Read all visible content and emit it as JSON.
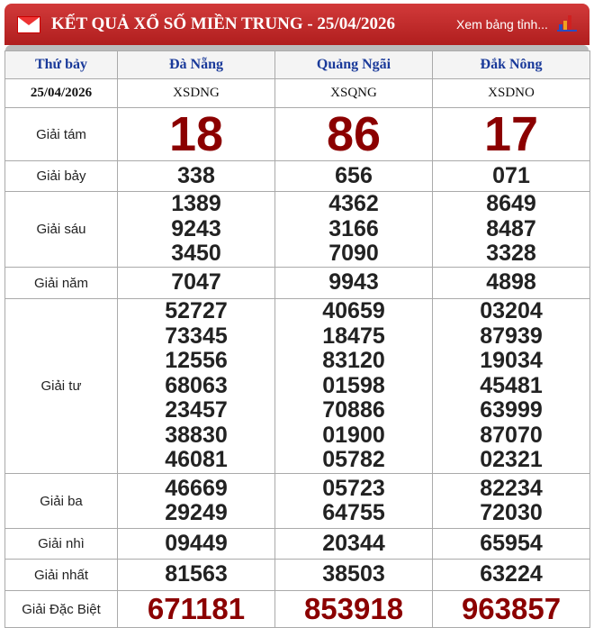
{
  "header": {
    "title": "KẾT QUẢ XỔ SỐ MIỀN TRUNG - 25/04/2026",
    "more_link": "Xem bảng tỉnh...",
    "accent": "#b01e1e"
  },
  "columns": {
    "day": "Thứ bảy",
    "provinces": [
      "Đà Nẵng",
      "Quảng Ngãi",
      "Đắk Nông"
    ]
  },
  "date_row": {
    "date": "25/04/2026",
    "codes": [
      "XSDNG",
      "XSQNG",
      "XSDNO"
    ]
  },
  "prizes": [
    {
      "label": "Giải tám",
      "style": "big",
      "values": [
        [
          "18"
        ],
        [
          "86"
        ],
        [
          "17"
        ]
      ]
    },
    {
      "label": "Giải bảy",
      "style": "num",
      "values": [
        [
          "338"
        ],
        [
          "656"
        ],
        [
          "071"
        ]
      ]
    },
    {
      "label": "Giải sáu",
      "style": "num",
      "values": [
        [
          "1389",
          "9243",
          "3450"
        ],
        [
          "4362",
          "3166",
          "7090"
        ],
        [
          "8649",
          "8487",
          "3328"
        ]
      ]
    },
    {
      "label": "Giải năm",
      "style": "num",
      "values": [
        [
          "7047"
        ],
        [
          "9943"
        ],
        [
          "4898"
        ]
      ]
    },
    {
      "label": "Giải tư",
      "style": "num",
      "values": [
        [
          "52727",
          "73345",
          "12556",
          "68063",
          "23457",
          "38830",
          "46081"
        ],
        [
          "40659",
          "18475",
          "83120",
          "01598",
          "70886",
          "01900",
          "05782"
        ],
        [
          "03204",
          "87939",
          "19034",
          "45481",
          "63999",
          "87070",
          "02321"
        ]
      ]
    },
    {
      "label": "Giải ba",
      "style": "num",
      "values": [
        [
          "46669",
          "29249"
        ],
        [
          "05723",
          "64755"
        ],
        [
          "82234",
          "72030"
        ]
      ]
    },
    {
      "label": "Giải nhì",
      "style": "num",
      "values": [
        [
          "09449"
        ],
        [
          "20344"
        ],
        [
          "65954"
        ]
      ]
    },
    {
      "label": "Giải nhất",
      "style": "num",
      "values": [
        [
          "81563"
        ],
        [
          "38503"
        ],
        [
          "63224"
        ]
      ]
    },
    {
      "label": "Giải Đặc Biệt",
      "style": "db",
      "values": [
        [
          "671181"
        ],
        [
          "853918"
        ],
        [
          "963857"
        ]
      ]
    }
  ]
}
